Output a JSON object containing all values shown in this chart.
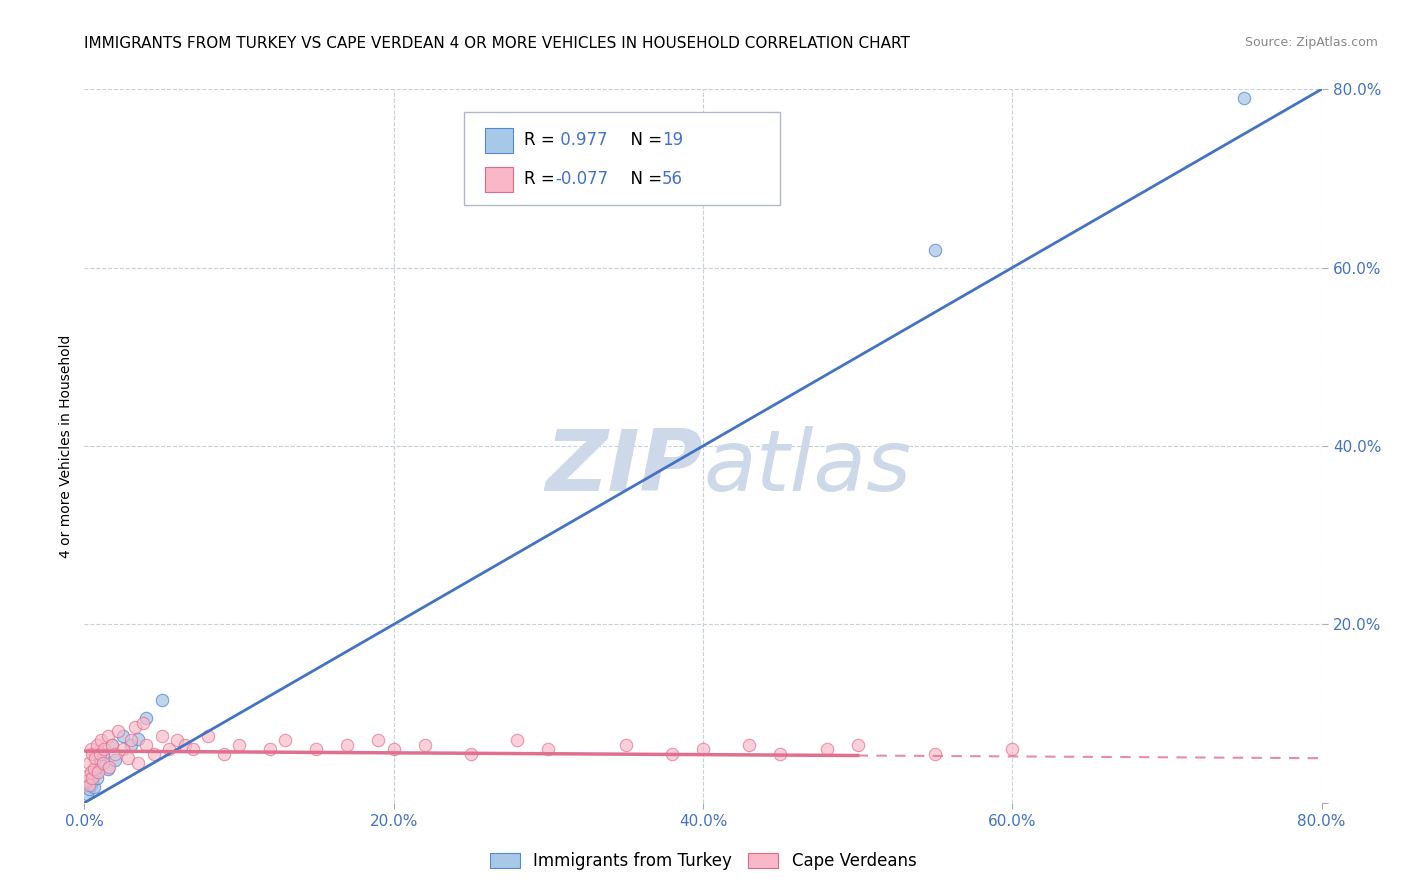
{
  "title": "IMMIGRANTS FROM TURKEY VS CAPE VERDEAN 4 OR MORE VEHICLES IN HOUSEHOLD CORRELATION CHART",
  "source": "Source: ZipAtlas.com",
  "ylabel": "4 or more Vehicles in Household",
  "watermark": "ZIPatlas",
  "legend_label_blue": "Immigrants from Turkey",
  "legend_label_pink": "Cape Verdeans",
  "R_blue": 0.977,
  "N_blue": 19,
  "R_pink": -0.077,
  "N_pink": 56,
  "blue_color": "#a8c8e8",
  "blue_edge_color": "#5588cc",
  "blue_line_color": "#4472c4",
  "pink_color": "#f8b8c8",
  "pink_edge_color": "#e06888",
  "pink_line_color": "#e07090",
  "title_fontsize": 11,
  "source_fontsize": 9,
  "watermark_color": "#cdd8e8",
  "grid_color": "#c8d0d8",
  "axis_label_color": "#4472c4",
  "blue_scatter_x": [
    0.002,
    0.003,
    0.004,
    0.005,
    0.006,
    0.007,
    0.008,
    0.01,
    0.012,
    0.015,
    0.018,
    0.02,
    0.025,
    0.03,
    0.035,
    0.04,
    0.05,
    0.55,
    0.75
  ],
  "blue_scatter_y": [
    0.01,
    0.015,
    0.02,
    0.025,
    0.018,
    0.035,
    0.028,
    0.045,
    0.055,
    0.038,
    0.065,
    0.048,
    0.075,
    0.065,
    0.072,
    0.095,
    0.115,
    0.62,
    0.79
  ],
  "pink_scatter_x": [
    0.001,
    0.002,
    0.003,
    0.003,
    0.004,
    0.004,
    0.005,
    0.005,
    0.006,
    0.007,
    0.008,
    0.009,
    0.01,
    0.011,
    0.012,
    0.013,
    0.015,
    0.016,
    0.018,
    0.02,
    0.022,
    0.025,
    0.028,
    0.03,
    0.033,
    0.035,
    0.038,
    0.04,
    0.045,
    0.05,
    0.055,
    0.06,
    0.065,
    0.07,
    0.08,
    0.09,
    0.1,
    0.12,
    0.13,
    0.15,
    0.17,
    0.19,
    0.2,
    0.22,
    0.25,
    0.28,
    0.3,
    0.35,
    0.38,
    0.4,
    0.43,
    0.45,
    0.48,
    0.5,
    0.55,
    0.6
  ],
  "pink_scatter_y": [
    0.025,
    0.03,
    0.02,
    0.045,
    0.035,
    0.06,
    0.028,
    0.055,
    0.038,
    0.05,
    0.065,
    0.035,
    0.055,
    0.07,
    0.045,
    0.06,
    0.075,
    0.04,
    0.065,
    0.055,
    0.08,
    0.06,
    0.05,
    0.07,
    0.085,
    0.045,
    0.09,
    0.065,
    0.055,
    0.075,
    0.06,
    0.07,
    0.065,
    0.06,
    0.075,
    0.055,
    0.065,
    0.06,
    0.07,
    0.06,
    0.065,
    0.07,
    0.06,
    0.065,
    0.055,
    0.07,
    0.06,
    0.065,
    0.055,
    0.06,
    0.065,
    0.055,
    0.06,
    0.065,
    0.055,
    0.06
  ],
  "xlim": [
    0.0,
    0.8
  ],
  "ylim": [
    0.0,
    0.8
  ],
  "xticks": [
    0.0,
    0.2,
    0.4,
    0.6,
    0.8
  ],
  "yticks": [
    0.0,
    0.2,
    0.4,
    0.6,
    0.8
  ],
  "ytick_labels": [
    "",
    "20.0%",
    "40.0%",
    "60.0%",
    "80.0%"
  ],
  "xtick_labels": [
    "0.0%",
    "20.0%",
    "40.0%",
    "60.0%",
    "80.0%"
  ]
}
